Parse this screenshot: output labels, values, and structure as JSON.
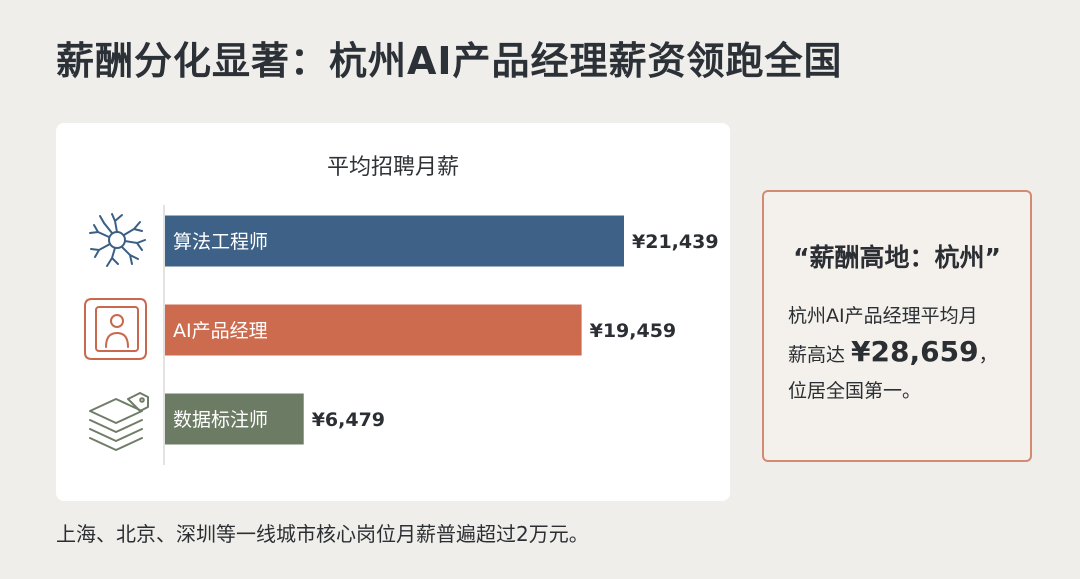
{
  "title": "薪酬分化显著：杭州AI产品经理薪资领跑全国",
  "chart_data": {
    "type": "bar",
    "orientation": "horizontal",
    "title": "平均招聘月薪",
    "categories": [
      "算法工程师",
      "AI产品经理",
      "数据标注师"
    ],
    "values": [
      21439,
      19459,
      6479
    ],
    "value_labels": [
      "¥21,439",
      "¥19,459",
      "¥6,479"
    ],
    "colors": [
      "#3e6287",
      "#cd6b4f",
      "#6c7b64"
    ],
    "icons": [
      "neural-network-icon",
      "profile-card-icon",
      "data-layers-tag-icon"
    ],
    "xlim": [
      0,
      21439
    ]
  },
  "callout": {
    "title": "“薪酬高地：杭州”",
    "line1": "杭州AI产品经理平均月",
    "line2_prefix": "薪高达 ",
    "amount": "¥28,659",
    "line2_suffix": "，",
    "line3": "位居全国第一。"
  },
  "footnote": "上海、北京、深圳等一线城市核心岗位月薪普遍超过2万元。"
}
